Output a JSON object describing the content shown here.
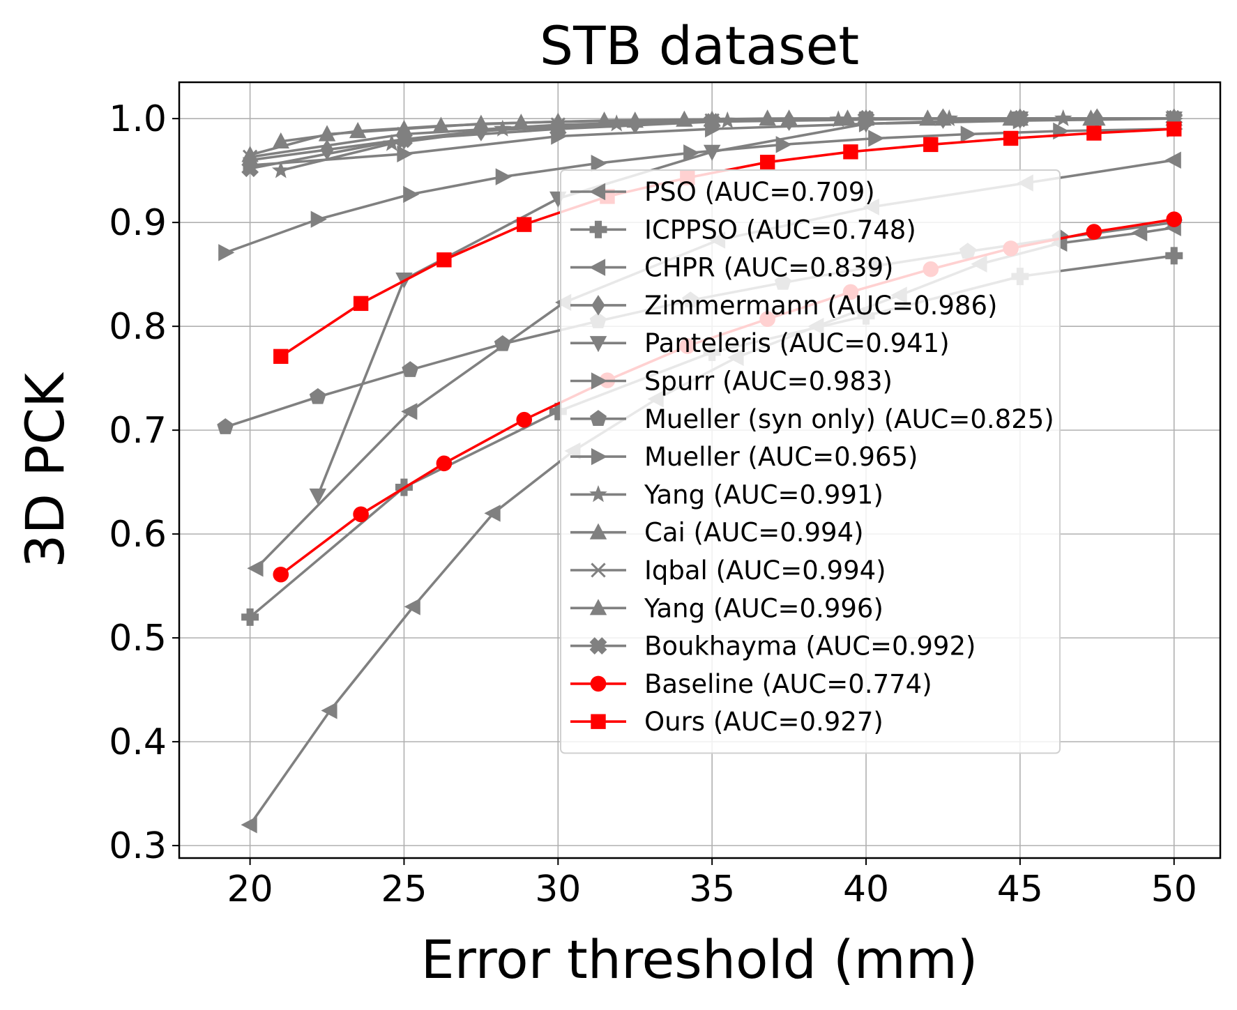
{
  "chart_data": {
    "type": "line",
    "title": "STB dataset",
    "xlabel": "Error threshold (mm)",
    "ylabel": "3D PCK",
    "xlim": [
      17.7,
      51.5
    ],
    "ylim": [
      0.288,
      1.035
    ],
    "xticks": [
      "20",
      "25",
      "30",
      "35",
      "40",
      "45",
      "50"
    ],
    "yticks": [
      "0.3",
      "0.4",
      "0.5",
      "0.6",
      "0.7",
      "0.8",
      "0.9",
      "1.0"
    ],
    "grid": true,
    "legend_position": "lower-right",
    "colors": {
      "reference": "#808080",
      "ours": "#ff0000",
      "grid": "#b0b0b0"
    },
    "series": [
      {
        "name": "PSO (AUC=0.709)",
        "marker": "triangle-left",
        "color": "#808080",
        "x": [
          20,
          22.6,
          25.3,
          27.9,
          30.5,
          33.2,
          35.8,
          38.4,
          41.1,
          43.7,
          46.3,
          48.9,
          50
        ],
        "y": [
          0.32,
          0.43,
          0.53,
          0.62,
          0.68,
          0.73,
          0.77,
          0.8,
          0.83,
          0.86,
          0.88,
          0.89,
          0.895
        ]
      },
      {
        "name": "ICPPSO (AUC=0.748)",
        "marker": "plus-filled",
        "color": "#808080",
        "x": [
          20,
          25,
          30,
          35,
          40,
          45,
          50
        ],
        "y": [
          0.52,
          0.645,
          0.718,
          0.775,
          0.81,
          0.848,
          0.868
        ]
      },
      {
        "name": "CHPR (AUC=0.839)",
        "marker": "triangle-left",
        "color": "#808080",
        "x": [
          20.2,
          25.2,
          30.2,
          35.2,
          40.2,
          45.2,
          50
        ],
        "y": [
          0.567,
          0.718,
          0.823,
          0.883,
          0.915,
          0.938,
          0.96
        ]
      },
      {
        "name": "Zimmermann (AUC=0.986)",
        "marker": "diamond",
        "color": "#808080",
        "x": [
          20,
          22.5,
          25,
          27.5,
          30,
          32.5,
          35,
          37.5,
          40,
          42.5,
          45,
          47.5,
          50
        ],
        "y": [
          0.96,
          0.97,
          0.98,
          0.988,
          0.992,
          0.995,
          0.997,
          0.998,
          0.999,
          1.0,
          1.0,
          1.0,
          1.0
        ]
      },
      {
        "name": "Panteleris (AUC=0.941)",
        "marker": "triangle-down",
        "color": "#808080",
        "x": [
          22.2,
          25,
          30,
          35,
          40,
          45,
          50
        ],
        "y": [
          0.637,
          0.845,
          0.923,
          0.968,
          0.995,
          1.0,
          1.0
        ]
      },
      {
        "name": "Spurr (AUC=0.983)",
        "marker": "triangle-right",
        "color": "#808080",
        "x": [
          20,
          25,
          30,
          35,
          40,
          45,
          50
        ],
        "y": [
          0.955,
          0.966,
          0.983,
          0.99,
          0.995,
          0.998,
          1.0
        ]
      },
      {
        "name": "Mueller (syn only) (AUC=0.825)",
        "marker": "pentagon",
        "color": "#808080",
        "x": [
          19.2,
          22.2,
          25.2,
          28.2,
          31.3,
          34.3,
          37.3,
          40.3,
          43.3,
          46.3,
          50
        ],
        "y": [
          0.703,
          0.732,
          0.758,
          0.783,
          0.805,
          0.825,
          0.842,
          0.858,
          0.872,
          0.885,
          0.9
        ]
      },
      {
        "name": "Mueller (AUC=0.965)",
        "marker": "triangle-right",
        "color": "#808080",
        "x": [
          19.2,
          22.2,
          25.2,
          28.2,
          31.3,
          34.3,
          37.3,
          40.3,
          43.3,
          46.3,
          50
        ],
        "y": [
          0.871,
          0.903,
          0.927,
          0.944,
          0.957,
          0.967,
          0.975,
          0.981,
          0.985,
          0.988,
          0.99
        ]
      },
      {
        "name": "Yang (AUC=0.991)",
        "marker": "star",
        "color": "#808080",
        "x": [
          21,
          24.6,
          28.2,
          31.9,
          35.5,
          39.1,
          42.7,
          46.4,
          50
        ],
        "y": [
          0.95,
          0.976,
          0.99,
          0.995,
          0.998,
          0.999,
          1.0,
          1.0,
          1.0
        ]
      },
      {
        "name": "Cai (AUC=0.994)",
        "marker": "triangle-up",
        "color": "#808080",
        "x": [
          20,
          22.5,
          25,
          27.5,
          30,
          32.5,
          35,
          37.5,
          40,
          42.5,
          45,
          47.5,
          50
        ],
        "y": [
          0.965,
          0.985,
          0.99,
          0.995,
          0.997,
          0.998,
          0.999,
          1.0,
          1.0,
          1.0,
          1.0,
          1.0,
          1.0
        ]
      },
      {
        "name": "Iqbal (AUC=0.994)",
        "marker": "x",
        "color": "#808080",
        "x": [
          20,
          25,
          30,
          35,
          40,
          45,
          50
        ],
        "y": [
          0.963,
          0.985,
          0.994,
          0.998,
          1.0,
          1.0,
          1.0
        ]
      },
      {
        "name": "Yang (AUC=0.996)",
        "marker": "triangle-up",
        "color": "#808080",
        "x": [
          21,
          23.5,
          26.2,
          28.8,
          31.5,
          34.1,
          36.8,
          39.4,
          42,
          44.7,
          47.3,
          50
        ],
        "y": [
          0.978,
          0.988,
          0.993,
          0.996,
          0.998,
          0.999,
          1.0,
          1.0,
          1.0,
          1.0,
          1.0,
          1.0
        ]
      },
      {
        "name": "Boukhayma (AUC=0.992)",
        "marker": "x-filled",
        "color": "#808080",
        "x": [
          20,
          25,
          30,
          35,
          40,
          45,
          50
        ],
        "y": [
          0.952,
          0.98,
          0.99,
          0.997,
          1.0,
          1.0,
          1.0
        ]
      },
      {
        "name": "Baseline (AUC=0.774)",
        "marker": "circle",
        "color": "#ff0000",
        "x": [
          21,
          23.6,
          26.3,
          28.9,
          31.6,
          34.2,
          36.8,
          39.5,
          42.1,
          44.7,
          47.4,
          50
        ],
        "y": [
          0.561,
          0.619,
          0.668,
          0.71,
          0.748,
          0.781,
          0.807,
          0.833,
          0.855,
          0.875,
          0.891,
          0.903
        ]
      },
      {
        "name": "Ours (AUC=0.927)",
        "marker": "square",
        "color": "#ff0000",
        "x": [
          21,
          23.6,
          26.3,
          28.9,
          31.6,
          34.2,
          36.8,
          39.5,
          42.1,
          44.7,
          47.4,
          50
        ],
        "y": [
          0.771,
          0.822,
          0.864,
          0.898,
          0.925,
          0.943,
          0.958,
          0.968,
          0.975,
          0.981,
          0.986,
          0.99
        ]
      }
    ]
  }
}
